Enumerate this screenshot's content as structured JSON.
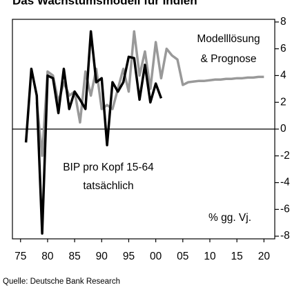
{
  "chart_data": {
    "type": "line",
    "title": "Das Wachstumsmodell für Indien",
    "annotations": {
      "model": [
        "Modelllösung",
        "& Prognose"
      ],
      "actual": [
        "BIP pro Kopf 15-64",
        "tatsächlich"
      ],
      "unit": "% gg. Vj."
    },
    "source": "Quelle: Deutsche Bank Research",
    "series": [
      {
        "name": "Modelllösung & Prognose",
        "color": "#999999",
        "x": [
          1978,
          1979,
          1980,
          1981,
          1982,
          1983,
          1984,
          1985,
          1986,
          1987,
          1988,
          1989,
          1990,
          1991,
          1992,
          1993,
          1994,
          1995,
          1996,
          1997,
          1998,
          1999,
          2000,
          2001,
          2002,
          2003,
          2004,
          2005,
          2006,
          2007,
          2008,
          2009,
          2010,
          2011,
          2012,
          2013,
          2014,
          2015,
          2016,
          2017,
          2018,
          2019,
          2020
        ],
        "values": [
          2,
          -2,
          4.3,
          4,
          2,
          3.5,
          2.5,
          2.8,
          0.5,
          4.3,
          2.5,
          4.5,
          1.5,
          1.8,
          1.5,
          3,
          4.5,
          2.8,
          7.3,
          4,
          5.8,
          3,
          6.5,
          3.8,
          6,
          5.5,
          5.2,
          3.3,
          3.5,
          3.55,
          3.6,
          3.6,
          3.65,
          3.7,
          3.7,
          3.75,
          3.75,
          3.8,
          3.8,
          3.85,
          3.85,
          3.9,
          3.9
        ]
      },
      {
        "name": "BIP pro Kopf 15-64 tatsächlich",
        "color": "#000000",
        "x": [
          1976,
          1977,
          1978,
          1979,
          1980,
          1981,
          1982,
          1983,
          1984,
          1985,
          1986,
          1987,
          1988,
          1989,
          1990,
          1991,
          1992,
          1993,
          1994,
          1995,
          1996,
          1997,
          1998,
          1999,
          2000,
          2001
        ],
        "values": [
          -1,
          4.5,
          2.5,
          -7.8,
          4,
          3.8,
          1.2,
          4.5,
          1.5,
          2.8,
          2.2,
          1.5,
          7.3,
          3.5,
          3.8,
          -1.2,
          3.5,
          2.8,
          3.5,
          5.4,
          5.3,
          2.2,
          4.8,
          2,
          3.4,
          2.3
        ]
      }
    ],
    "xlim": [
      1973.5,
      2022
    ],
    "xticks": [
      {
        "value": 1975,
        "label": "75"
      },
      {
        "value": 1980,
        "label": "80"
      },
      {
        "value": 1985,
        "label": "85"
      },
      {
        "value": 1990,
        "label": "90"
      },
      {
        "value": 1995,
        "label": "95"
      },
      {
        "value": 2000,
        "label": "00"
      },
      {
        "value": 2005,
        "label": "05"
      },
      {
        "value": 2010,
        "label": "10"
      },
      {
        "value": 2015,
        "label": "15"
      },
      {
        "value": 2020,
        "label": "20"
      }
    ],
    "ylim": [
      -8.2,
      8.2
    ],
    "yticks": [
      -8,
      -6,
      -4,
      -2,
      0,
      2,
      4,
      6,
      8
    ]
  }
}
